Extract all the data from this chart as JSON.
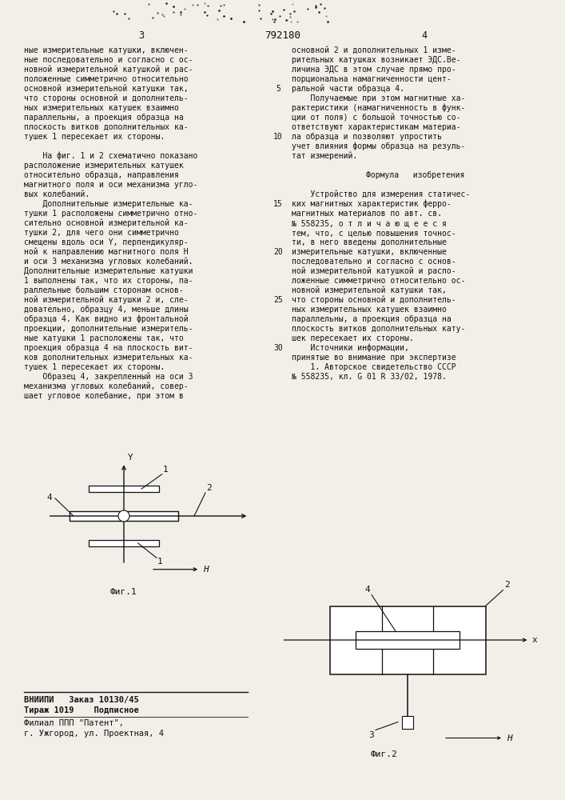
{
  "bg_color": "#f2efe9",
  "text_color": "#111111",
  "header": {
    "left_num": "3",
    "center_num": "792180",
    "right_num": "4"
  },
  "col1_lines": [
    "ные измерительные катушки, включен-",
    "ные последовательно и согласно с ос-",
    "новной измерительной катушкой и рас-",
    "положенные симметрично относительно",
    "основной измерительной катушки так,",
    "что стороны основной и дополнитель-",
    "ных измерительных катушек взаимно",
    "параллельны, а проекция образца на",
    "плоскость витков дополнительных ка-",
    "тушек 1 пересекает их стороны.",
    "",
    "    На фиг. 1 и 2 схематично показано",
    "расположение измерительных катушек",
    "относительно образца, направления",
    "магнитного поля и оси механизма угло-",
    "вых колебаний.",
    "    Дополнительные измерительные ка-",
    "тушки 1 расположены симметрично отно-",
    "сительно основной измерительной ка-",
    "тушки 2, для чего они симметрично",
    "смещены вдоль оси Y, перпендикуляр-",
    "ной к направлению магнитного поля Н",
    "и оси 3 механизма угловых колебаний.",
    "Дополнительные измерительные катушки",
    "1 выполнены так, что их стороны, па-",
    "раллельные большим сторонам основ-",
    "ной измерительной катушки 2 и, сле-",
    "довательно, образцу 4, меньше длины",
    "образца 4. Как видно из фронтальной",
    "проекции, дополнительные измеритель-",
    "ные катушки 1 расположены так, что",
    "проекция образца 4 на плоскость вит-",
    "ков дополнительных измерительных ка-",
    "тушек 1 пересекает их стороны.",
    "    Образец 4, закрепленный на оси 3",
    "механизма угловых колебаний, совер-",
    "шает угловое колебание, при этом в"
  ],
  "col2_lines": [
    "основной 2 и дополнительных 1 изме-",
    "рительных катушках возникает ЭДС.Ве-",
    "личина ЭДС в этом случае прямо про-",
    "порциональна намагниченности цент-",
    "ральной части образца 4.",
    "    Получаемые при этом магнитные ха-",
    "рактеристики (намагниченность в функ-",
    "ции от поля) с большой точностью со-",
    "ответствуют характеристикам материа-",
    "ла образца и позволяют упростить",
    "учет влияния формы образца на резуль-",
    "тат измерений.",
    "",
    "        Формула   изобретения",
    "",
    "    Устройство для измерения статичес-",
    "ких магнитных характеристик ферро-",
    "магнитных материалов по авт. св.",
    "№ 558235, о т л и ч а ю щ е е с я",
    "тем, что, с целью повышения точнос-",
    "ти, в него введены дополнительные",
    "измерительные катушки, включенные",
    "последовательно и согласно с основ-",
    "ной измерительной катушкой и распо-",
    "ложенные симметрично относительно ос-",
    "новной измерительной катушки так,",
    "что стороны основной и дополнитель-",
    "ных измерительных катушек взаимно",
    "параллельны, а проекция образца на",
    "плоскость витков дополнительных кату-",
    "шек пересекает их стороны.",
    "    Источники информации,",
    "принятые во внимание при экспертизе",
    "    1. Авторское свидетельство СССР",
    "№ 558235, кл. G 01 R 33/02, 1978."
  ],
  "line_numbers": [
    "5",
    "10",
    "15",
    "20",
    "25",
    "30"
  ],
  "line_number_rows": [
    4,
    9,
    16,
    21,
    26,
    31
  ],
  "footer": {
    "bold1": "ВНИИПИ   Заказ 10130/45",
    "bold2": "Тираж 1019    Подписное",
    "norm1": "Филиал ППП \"Патент\",",
    "norm2": "г. Ужгород, ул. Проектная, 4"
  }
}
